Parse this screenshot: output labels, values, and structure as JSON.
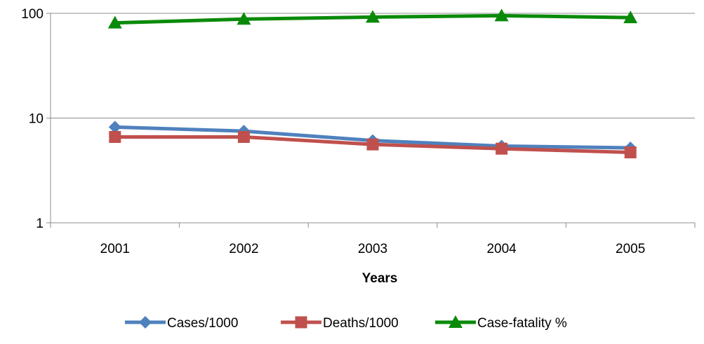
{
  "chart_data": {
    "type": "line",
    "xlabel": "Years",
    "ylabel": "",
    "y_scale": "log",
    "ylim": [
      1,
      100
    ],
    "y_ticks": [
      "1",
      "10",
      "100"
    ],
    "categories": [
      "2001",
      "2002",
      "2003",
      "2004",
      "2005"
    ],
    "grid": "horizontal",
    "legend_position": "bottom",
    "series": [
      {
        "name": "Cases/1000",
        "values": [
          8.2,
          7.5,
          6.1,
          5.4,
          5.2
        ],
        "color": "#4f81bd",
        "marker": "diamond"
      },
      {
        "name": "Deaths/1000",
        "values": [
          6.6,
          6.6,
          5.6,
          5.1,
          4.7
        ],
        "color": "#c0504d",
        "marker": "square"
      },
      {
        "name": "Case-fatality %",
        "values": [
          81,
          88,
          92,
          95,
          91
        ],
        "color": "#0a8a0a",
        "marker": "triangle"
      }
    ]
  }
}
